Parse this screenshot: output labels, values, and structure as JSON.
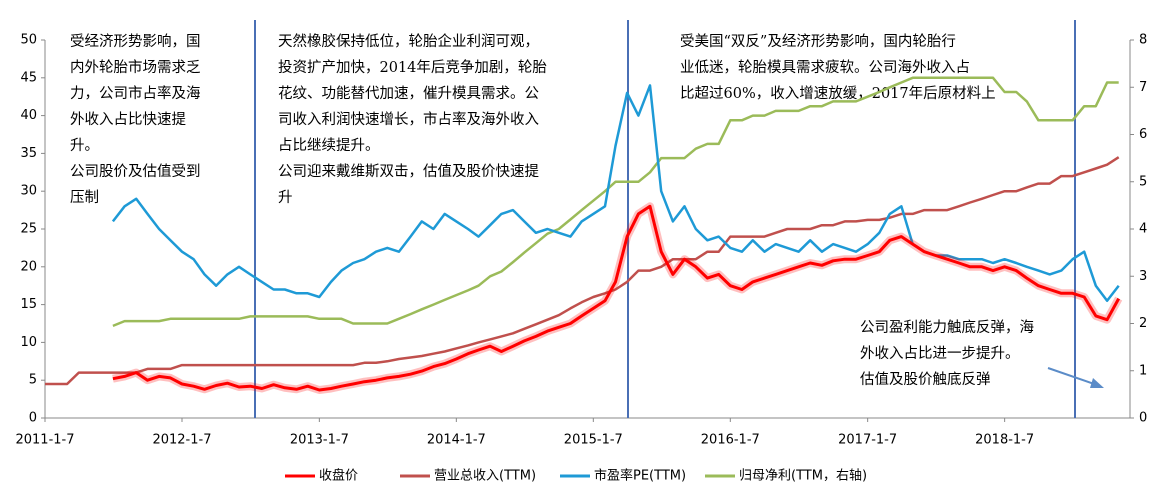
{
  "chart_data": {
    "type": "line",
    "x": [
      "2011-1-7",
      "2011-2-7",
      "2011-3-7",
      "2011-4-7",
      "2011-5-7",
      "2011-6-7",
      "2011-7-7",
      "2011-8-7",
      "2011-9-7",
      "2011-10-7",
      "2011-11-7",
      "2011-12-7",
      "2012-1-7",
      "2012-2-7",
      "2012-3-7",
      "2012-4-7",
      "2012-5-7",
      "2012-6-7",
      "2012-7-7",
      "2012-8-7",
      "2012-9-7",
      "2012-10-7",
      "2012-11-7",
      "2012-12-7",
      "2013-1-7",
      "2013-2-7",
      "2013-3-7",
      "2013-4-7",
      "2013-5-7",
      "2013-6-7",
      "2013-7-7",
      "2013-8-7",
      "2013-9-7",
      "2013-10-7",
      "2013-11-7",
      "2013-12-7",
      "2014-1-7",
      "2014-2-7",
      "2014-3-7",
      "2014-4-7",
      "2014-5-7",
      "2014-6-7",
      "2014-7-7",
      "2014-8-7",
      "2014-9-7",
      "2014-10-7",
      "2014-11-7",
      "2014-12-7",
      "2015-1-7",
      "2015-2-7",
      "2015-3-7",
      "2015-4-7",
      "2015-5-7",
      "2015-6-7",
      "2015-7-7",
      "2015-8-7",
      "2015-9-7",
      "2015-10-7",
      "2015-11-7",
      "2015-12-7",
      "2016-1-7",
      "2016-2-7",
      "2016-3-7",
      "2016-4-7",
      "2016-5-7",
      "2016-6-7",
      "2016-7-7",
      "2016-8-7",
      "2016-9-7",
      "2016-10-7",
      "2016-11-7",
      "2016-12-7",
      "2017-1-7",
      "2017-2-7",
      "2017-3-7",
      "2017-4-7",
      "2017-5-7",
      "2017-6-7",
      "2017-7-7",
      "2017-8-7",
      "2017-9-7",
      "2017-10-7",
      "2017-11-7",
      "2017-12-7",
      "2018-1-7",
      "2018-2-7",
      "2018-3-7",
      "2018-4-7",
      "2018-5-7",
      "2018-6-7",
      "2018-7-7",
      "2018-8-7",
      "2018-9-7",
      "2018-10-7",
      "2018-11-7"
    ],
    "xlim": [
      "2011-1-7",
      "2018-12-7"
    ],
    "xticks": [
      "2011-1-7",
      "2012-1-7",
      "2013-1-7",
      "2014-1-7",
      "2015-1-7",
      "2016-1-7",
      "2017-1-7",
      "2018-1-7"
    ],
    "ylim": [
      0,
      50
    ],
    "yticks": [
      0,
      5,
      10,
      15,
      20,
      25,
      30,
      35,
      40,
      45,
      50
    ],
    "y2lim": [
      0,
      8
    ],
    "y2ticks": [
      0,
      1,
      2,
      3,
      4,
      5,
      6,
      7,
      8
    ],
    "series": [
      {
        "name": "归母净利(TTM，右轴)",
        "color": "#9bbb59",
        "axis": "y2",
        "values": [
          null,
          null,
          null,
          null,
          null,
          null,
          1.95,
          2.05,
          2.05,
          2.05,
          2.05,
          2.1,
          2.1,
          2.1,
          2.1,
          2.1,
          2.1,
          2.1,
          2.15,
          2.15,
          2.15,
          2.15,
          2.15,
          2.15,
          2.1,
          2.1,
          2.1,
          2.0,
          2.0,
          2.0,
          2.0,
          2.1,
          2.2,
          2.3,
          2.4,
          2.5,
          2.6,
          2.7,
          2.8,
          3.0,
          3.1,
          3.3,
          3.5,
          3.7,
          3.9,
          4.0,
          4.2,
          4.4,
          4.6,
          4.8,
          5.0,
          5.0,
          5.0,
          5.2,
          5.5,
          5.5,
          5.5,
          5.7,
          5.8,
          5.8,
          6.3,
          6.3,
          6.4,
          6.4,
          6.5,
          6.5,
          6.5,
          6.6,
          6.6,
          6.7,
          6.7,
          6.7,
          6.8,
          6.9,
          7.0,
          7.1,
          7.2,
          7.2,
          7.2,
          7.2,
          7.2,
          7.2,
          7.2,
          7.2,
          6.9,
          6.9,
          6.7,
          6.3,
          6.3,
          6.3,
          6.3,
          6.6,
          6.6,
          7.1,
          7.1
        ]
      },
      {
        "name": "营业总收入(TTM)",
        "color": "#c0504d",
        "values": [
          4.5,
          4.5,
          4.5,
          6,
          6,
          6,
          6,
          6,
          6,
          6.5,
          6.5,
          6.5,
          7,
          7,
          7,
          7,
          7,
          7,
          7,
          7,
          7,
          7,
          7,
          7,
          7,
          7,
          7,
          7,
          7.3,
          7.3,
          7.5,
          7.8,
          8.0,
          8.2,
          8.5,
          8.8,
          9.2,
          9.6,
          10,
          10.4,
          10.8,
          11.2,
          11.8,
          12.4,
          13,
          13.6,
          14.5,
          15.3,
          16,
          16.5,
          17,
          18,
          19.5,
          19.5,
          20,
          21,
          21,
          21,
          22,
          22,
          24,
          24,
          24,
          24,
          24.5,
          25,
          25,
          25,
          25.5,
          25.5,
          26,
          26,
          26.2,
          26.2,
          26.5,
          27,
          27,
          27.5,
          27.5,
          27.5,
          28,
          28.5,
          29,
          29.5,
          30,
          30,
          30.5,
          31,
          31,
          32,
          32,
          32.5,
          33,
          33.5,
          34.5
        ]
      },
      {
        "name": "市盈率PE(TTM)",
        "color": "#1e9ad6",
        "values": [
          null,
          null,
          null,
          null,
          null,
          null,
          26,
          28,
          29,
          27,
          25,
          23.5,
          22,
          21,
          19,
          17.5,
          19,
          20,
          19,
          18,
          17,
          17,
          16.5,
          16.5,
          16,
          18,
          19.5,
          20.5,
          21,
          22,
          22.5,
          22,
          24,
          26,
          25,
          27,
          26,
          25,
          24,
          25.5,
          27,
          27.5,
          26,
          24.5,
          25,
          24.5,
          24,
          26,
          27,
          28,
          36,
          43,
          40,
          44,
          30,
          26,
          28,
          25,
          23.5,
          24,
          22.5,
          22,
          23.5,
          22,
          23,
          22.5,
          22,
          23.5,
          22,
          23,
          22.5,
          22,
          23,
          24.5,
          27,
          28,
          23,
          22,
          21.5,
          21.5,
          21,
          21,
          21,
          20.5,
          21,
          20.5,
          20,
          19.5,
          19,
          19.5,
          21,
          22,
          17.5,
          15.5,
          17.5
        ]
      },
      {
        "name": "收盘价",
        "color": "#ff0000",
        "values": [
          null,
          null,
          null,
          null,
          null,
          null,
          5.2,
          5.5,
          6,
          5,
          5.5,
          5.3,
          4.5,
          4.2,
          3.8,
          4.3,
          4.6,
          4.1,
          4.2,
          3.9,
          4.4,
          4.0,
          3.8,
          4.2,
          3.7,
          3.9,
          4.2,
          4.5,
          4.8,
          5.0,
          5.3,
          5.5,
          5.8,
          6.2,
          6.8,
          7.2,
          7.8,
          8.5,
          9.0,
          9.5,
          8.8,
          9.5,
          10.2,
          10.8,
          11.5,
          12.0,
          12.5,
          13.5,
          14.5,
          15.5,
          18,
          24,
          27,
          28,
          22,
          19,
          21,
          20,
          18.5,
          19,
          17.5,
          17,
          18,
          18.5,
          19,
          19.5,
          20,
          20.5,
          20.2,
          20.8,
          21,
          21,
          21.5,
          22,
          23.5,
          24,
          23,
          22,
          21.5,
          21,
          20.5,
          20,
          20,
          19.5,
          20,
          19.5,
          18.5,
          17.5,
          17,
          16.5,
          16.5,
          16,
          13.5,
          13,
          15.8
        ]
      }
    ],
    "legend_order": [
      "收盘价",
      "营业总收入(TTM)",
      "市盈率PE(TTM)",
      "归母净利(TTM，右轴)"
    ],
    "annotations": [
      [
        "受经济形势影响，国",
        "内外轮胎市场需求乏",
        "力，公司市占率及海",
        "外收入占比快速提",
        "升。",
        "公司股价及估值受到",
        "压制"
      ],
      [
        "天然橡胶保持低位，轮胎企业利润可观，",
        "投资扩产加快，2014年后竞争加剧，轮胎",
        "花纹、功能替代加速，催升模具需求。公",
        "司收入利润快速增长，市占率及海外收入",
        "占比继续提升。",
        "公司迎来戴维斯双击，估值及股价快速提",
        "升"
      ],
      [
        "受美国“双反”及经济形势影响，国内轮胎行",
        "业低迷，轮胎模具需求疲软。公司海外收入占",
        "比超过60%，收入增速放缓，2017年后原材料上"
      ],
      [
        "公司盈利能力触底反弹，海",
        "外收入占比进一步提升。",
        "估值及股价触底反弹"
      ]
    ]
  }
}
